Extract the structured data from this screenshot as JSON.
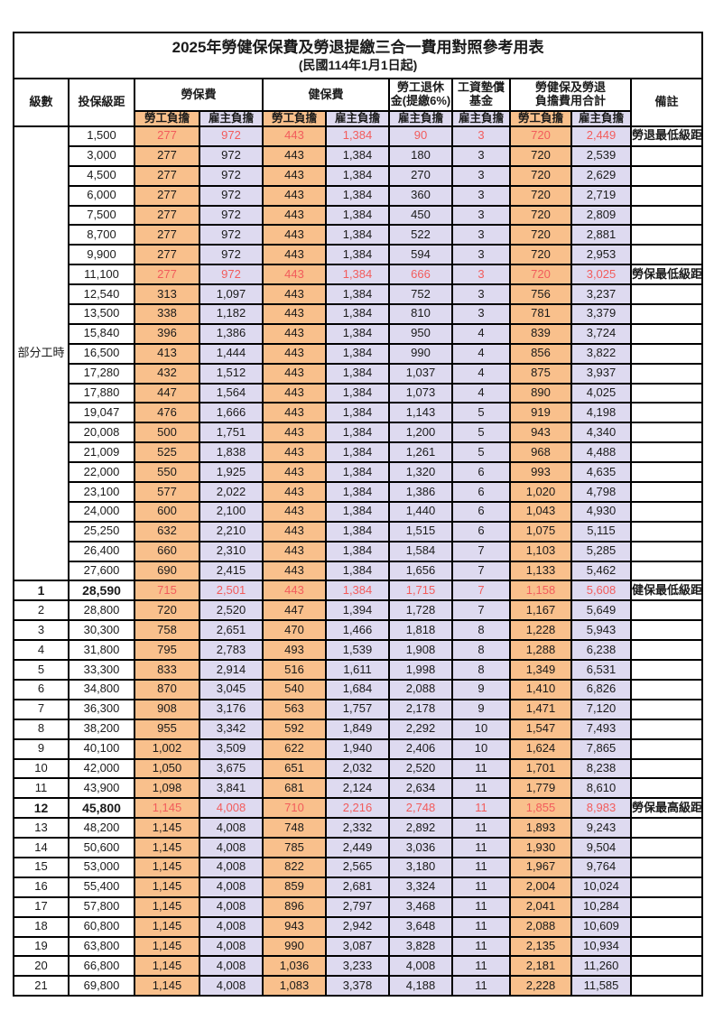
{
  "title": "2025年勞健保保費及勞退提繳三合一費用對照參考用表",
  "subtitle": "(民國114年1月1日起)",
  "colors": {
    "employee_bg": "#F9C08C",
    "employer_bg": "#DEDAF0",
    "highlight_text": "#F25C5C",
    "grid": "#000000"
  },
  "header": {
    "level": "級數",
    "bracket": "投保級距",
    "labor_ins": "勞保費",
    "health_ins": "健保費",
    "pension_line1": "勞工退休",
    "pension_line2": "金(提繳6%)",
    "wage_fund_line1": "工資墊償",
    "wage_fund_line2": "基金",
    "total_line1": "勞健保及勞退",
    "total_line2": "負擔費用合計",
    "remark": "備註",
    "employee": "勞工負擔",
    "employer": "雇主負擔"
  },
  "part_time_label": "部分工時",
  "part_time_rowspan": 23,
  "rows": [
    {
      "level": "",
      "bracket": "1,500",
      "values": [
        "277",
        "972",
        "443",
        "1,384",
        "90",
        "3",
        "720",
        "2,449"
      ],
      "remark": "勞退最低級距",
      "highlight": true,
      "bold": false
    },
    {
      "level": "",
      "bracket": "3,000",
      "values": [
        "277",
        "972",
        "443",
        "1,384",
        "180",
        "3",
        "720",
        "2,539"
      ],
      "remark": "",
      "highlight": false,
      "bold": false
    },
    {
      "level": "",
      "bracket": "4,500",
      "values": [
        "277",
        "972",
        "443",
        "1,384",
        "270",
        "3",
        "720",
        "2,629"
      ],
      "remark": "",
      "highlight": false,
      "bold": false
    },
    {
      "level": "",
      "bracket": "6,000",
      "values": [
        "277",
        "972",
        "443",
        "1,384",
        "360",
        "3",
        "720",
        "2,719"
      ],
      "remark": "",
      "highlight": false,
      "bold": false
    },
    {
      "level": "",
      "bracket": "7,500",
      "values": [
        "277",
        "972",
        "443",
        "1,384",
        "450",
        "3",
        "720",
        "2,809"
      ],
      "remark": "",
      "highlight": false,
      "bold": false
    },
    {
      "level": "",
      "bracket": "8,700",
      "values": [
        "277",
        "972",
        "443",
        "1,384",
        "522",
        "3",
        "720",
        "2,881"
      ],
      "remark": "",
      "highlight": false,
      "bold": false
    },
    {
      "level": "",
      "bracket": "9,900",
      "values": [
        "277",
        "972",
        "443",
        "1,384",
        "594",
        "3",
        "720",
        "2,953"
      ],
      "remark": "",
      "highlight": false,
      "bold": false
    },
    {
      "level": "",
      "bracket": "11,100",
      "values": [
        "277",
        "972",
        "443",
        "1,384",
        "666",
        "3",
        "720",
        "3,025"
      ],
      "remark": "勞保最低級距",
      "highlight": true,
      "bold": false
    },
    {
      "level": "",
      "bracket": "12,540",
      "values": [
        "313",
        "1,097",
        "443",
        "1,384",
        "752",
        "3",
        "756",
        "3,237"
      ],
      "remark": "",
      "highlight": false,
      "bold": false
    },
    {
      "level": "",
      "bracket": "13,500",
      "values": [
        "338",
        "1,182",
        "443",
        "1,384",
        "810",
        "3",
        "781",
        "3,379"
      ],
      "remark": "",
      "highlight": false,
      "bold": false
    },
    {
      "level": "",
      "bracket": "15,840",
      "values": [
        "396",
        "1,386",
        "443",
        "1,384",
        "950",
        "4",
        "839",
        "3,724"
      ],
      "remark": "",
      "highlight": false,
      "bold": false
    },
    {
      "level": "",
      "bracket": "16,500",
      "values": [
        "413",
        "1,444",
        "443",
        "1,384",
        "990",
        "4",
        "856",
        "3,822"
      ],
      "remark": "",
      "highlight": false,
      "bold": false
    },
    {
      "level": "",
      "bracket": "17,280",
      "values": [
        "432",
        "1,512",
        "443",
        "1,384",
        "1,037",
        "4",
        "875",
        "3,937"
      ],
      "remark": "",
      "highlight": false,
      "bold": false
    },
    {
      "level": "",
      "bracket": "17,880",
      "values": [
        "447",
        "1,564",
        "443",
        "1,384",
        "1,073",
        "4",
        "890",
        "4,025"
      ],
      "remark": "",
      "highlight": false,
      "bold": false
    },
    {
      "level": "",
      "bracket": "19,047",
      "values": [
        "476",
        "1,666",
        "443",
        "1,384",
        "1,143",
        "5",
        "919",
        "4,198"
      ],
      "remark": "",
      "highlight": false,
      "bold": false
    },
    {
      "level": "",
      "bracket": "20,008",
      "values": [
        "500",
        "1,751",
        "443",
        "1,384",
        "1,200",
        "5",
        "943",
        "4,340"
      ],
      "remark": "",
      "highlight": false,
      "bold": false
    },
    {
      "level": "",
      "bracket": "21,009",
      "values": [
        "525",
        "1,838",
        "443",
        "1,384",
        "1,261",
        "5",
        "968",
        "4,488"
      ],
      "remark": "",
      "highlight": false,
      "bold": false
    },
    {
      "level": "",
      "bracket": "22,000",
      "values": [
        "550",
        "1,925",
        "443",
        "1,384",
        "1,320",
        "6",
        "993",
        "4,635"
      ],
      "remark": "",
      "highlight": false,
      "bold": false
    },
    {
      "level": "",
      "bracket": "23,100",
      "values": [
        "577",
        "2,022",
        "443",
        "1,384",
        "1,386",
        "6",
        "1,020",
        "4,798"
      ],
      "remark": "",
      "highlight": false,
      "bold": false
    },
    {
      "level": "",
      "bracket": "24,000",
      "values": [
        "600",
        "2,100",
        "443",
        "1,384",
        "1,440",
        "6",
        "1,043",
        "4,930"
      ],
      "remark": "",
      "highlight": false,
      "bold": false
    },
    {
      "level": "",
      "bracket": "25,250",
      "values": [
        "632",
        "2,210",
        "443",
        "1,384",
        "1,515",
        "6",
        "1,075",
        "5,115"
      ],
      "remark": "",
      "highlight": false,
      "bold": false
    },
    {
      "level": "",
      "bracket": "26,400",
      "values": [
        "660",
        "2,310",
        "443",
        "1,384",
        "1,584",
        "7",
        "1,103",
        "5,285"
      ],
      "remark": "",
      "highlight": false,
      "bold": false
    },
    {
      "level": "",
      "bracket": "27,600",
      "values": [
        "690",
        "2,415",
        "443",
        "1,384",
        "1,656",
        "7",
        "1,133",
        "5,462"
      ],
      "remark": "",
      "highlight": false,
      "bold": false
    },
    {
      "level": "1",
      "bracket": "28,590",
      "values": [
        "715",
        "2,501",
        "443",
        "1,384",
        "1,715",
        "7",
        "1,158",
        "5,608"
      ],
      "remark": "健保最低級距",
      "highlight": true,
      "bold": true
    },
    {
      "level": "2",
      "bracket": "28,800",
      "values": [
        "720",
        "2,520",
        "447",
        "1,394",
        "1,728",
        "7",
        "1,167",
        "5,649"
      ],
      "remark": "",
      "highlight": false,
      "bold": false
    },
    {
      "level": "3",
      "bracket": "30,300",
      "values": [
        "758",
        "2,651",
        "470",
        "1,466",
        "1,818",
        "8",
        "1,228",
        "5,943"
      ],
      "remark": "",
      "highlight": false,
      "bold": false
    },
    {
      "level": "4",
      "bracket": "31,800",
      "values": [
        "795",
        "2,783",
        "493",
        "1,539",
        "1,908",
        "8",
        "1,288",
        "6,238"
      ],
      "remark": "",
      "highlight": false,
      "bold": false
    },
    {
      "level": "5",
      "bracket": "33,300",
      "values": [
        "833",
        "2,914",
        "516",
        "1,611",
        "1,998",
        "8",
        "1,349",
        "6,531"
      ],
      "remark": "",
      "highlight": false,
      "bold": false
    },
    {
      "level": "6",
      "bracket": "34,800",
      "values": [
        "870",
        "3,045",
        "540",
        "1,684",
        "2,088",
        "9",
        "1,410",
        "6,826"
      ],
      "remark": "",
      "highlight": false,
      "bold": false
    },
    {
      "level": "7",
      "bracket": "36,300",
      "values": [
        "908",
        "3,176",
        "563",
        "1,757",
        "2,178",
        "9",
        "1,471",
        "7,120"
      ],
      "remark": "",
      "highlight": false,
      "bold": false
    },
    {
      "level": "8",
      "bracket": "38,200",
      "values": [
        "955",
        "3,342",
        "592",
        "1,849",
        "2,292",
        "10",
        "1,547",
        "7,493"
      ],
      "remark": "",
      "highlight": false,
      "bold": false
    },
    {
      "level": "9",
      "bracket": "40,100",
      "values": [
        "1,002",
        "3,509",
        "622",
        "1,940",
        "2,406",
        "10",
        "1,624",
        "7,865"
      ],
      "remark": "",
      "highlight": false,
      "bold": false
    },
    {
      "level": "10",
      "bracket": "42,000",
      "values": [
        "1,050",
        "3,675",
        "651",
        "2,032",
        "2,520",
        "11",
        "1,701",
        "8,238"
      ],
      "remark": "",
      "highlight": false,
      "bold": false
    },
    {
      "level": "11",
      "bracket": "43,900",
      "values": [
        "1,098",
        "3,841",
        "681",
        "2,124",
        "2,634",
        "11",
        "1,779",
        "8,610"
      ],
      "remark": "",
      "highlight": false,
      "bold": false
    },
    {
      "level": "12",
      "bracket": "45,800",
      "values": [
        "1,145",
        "4,008",
        "710",
        "2,216",
        "2,748",
        "11",
        "1,855",
        "8,983"
      ],
      "remark": "勞保最高級距",
      "highlight": true,
      "bold": true
    },
    {
      "level": "13",
      "bracket": "48,200",
      "values": [
        "1,145",
        "4,008",
        "748",
        "2,332",
        "2,892",
        "11",
        "1,893",
        "9,243"
      ],
      "remark": "",
      "highlight": false,
      "bold": false
    },
    {
      "level": "14",
      "bracket": "50,600",
      "values": [
        "1,145",
        "4,008",
        "785",
        "2,449",
        "3,036",
        "11",
        "1,930",
        "9,504"
      ],
      "remark": "",
      "highlight": false,
      "bold": false
    },
    {
      "level": "15",
      "bracket": "53,000",
      "values": [
        "1,145",
        "4,008",
        "822",
        "2,565",
        "3,180",
        "11",
        "1,967",
        "9,764"
      ],
      "remark": "",
      "highlight": false,
      "bold": false
    },
    {
      "level": "16",
      "bracket": "55,400",
      "values": [
        "1,145",
        "4,008",
        "859",
        "2,681",
        "3,324",
        "11",
        "2,004",
        "10,024"
      ],
      "remark": "",
      "highlight": false,
      "bold": false
    },
    {
      "level": "17",
      "bracket": "57,800",
      "values": [
        "1,145",
        "4,008",
        "896",
        "2,797",
        "3,468",
        "11",
        "2,041",
        "10,284"
      ],
      "remark": "",
      "highlight": false,
      "bold": false
    },
    {
      "level": "18",
      "bracket": "60,800",
      "values": [
        "1,145",
        "4,008",
        "943",
        "2,942",
        "3,648",
        "11",
        "2,088",
        "10,609"
      ],
      "remark": "",
      "highlight": false,
      "bold": false
    },
    {
      "level": "19",
      "bracket": "63,800",
      "values": [
        "1,145",
        "4,008",
        "990",
        "3,087",
        "3,828",
        "11",
        "2,135",
        "10,934"
      ],
      "remark": "",
      "highlight": false,
      "bold": false
    },
    {
      "level": "20",
      "bracket": "66,800",
      "values": [
        "1,145",
        "4,008",
        "1,036",
        "3,233",
        "4,008",
        "11",
        "2,181",
        "11,260"
      ],
      "remark": "",
      "highlight": false,
      "bold": false
    },
    {
      "level": "21",
      "bracket": "69,800",
      "values": [
        "1,145",
        "4,008",
        "1,083",
        "3,378",
        "4,188",
        "11",
        "2,228",
        "11,585"
      ],
      "remark": "",
      "highlight": false,
      "bold": false
    }
  ],
  "value_column_types": [
    "emp",
    "er",
    "emp",
    "er",
    "er",
    "er",
    "emp",
    "er"
  ]
}
